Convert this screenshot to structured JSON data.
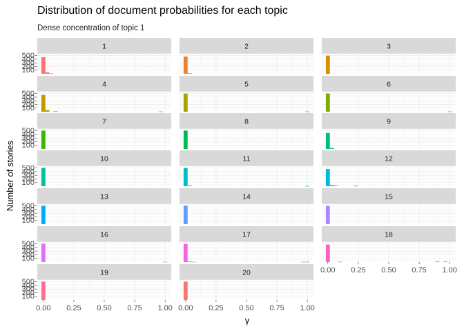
{
  "chart_data": {
    "type": "bar",
    "title": "Distribution of document probabilities for each topic",
    "subtitle": "Dense concentration of topic 1",
    "xlabel": "γ",
    "ylabel": "Number of stories",
    "xlim": [
      -0.05,
      1.05
    ],
    "ylim": [
      0,
      550
    ],
    "x_ticks": [
      0.0,
      0.25,
      0.5,
      0.75,
      1.0
    ],
    "x_tick_labels": [
      "0.00",
      "0.25",
      "0.50",
      "0.75",
      "1.00"
    ],
    "y_ticks": [
      100,
      200,
      300,
      400,
      500
    ],
    "y_tick_labels": [
      "100",
      "200",
      "300",
      "400",
      "500"
    ],
    "bin_width": 0.033,
    "grid": true,
    "legend": "none",
    "facets": [
      {
        "label": "1",
        "color": "#F8766D",
        "bars": [
          {
            "x": 0.0,
            "y": 455
          },
          {
            "x": 0.033,
            "y": 40
          },
          {
            "x": 0.066,
            "y": 8
          }
        ]
      },
      {
        "label": "2",
        "color": "#EA8331",
        "bars": [
          {
            "x": 0.0,
            "y": 475
          },
          {
            "x": 0.033,
            "y": 15
          }
        ]
      },
      {
        "label": "3",
        "color": "#D89000",
        "bars": [
          {
            "x": 0.0,
            "y": 500
          }
        ]
      },
      {
        "label": "4",
        "color": "#C09B00",
        "bars": [
          {
            "x": 0.0,
            "y": 460
          },
          {
            "x": 0.033,
            "y": 45
          },
          {
            "x": 0.1,
            "y": 15
          },
          {
            "x": 0.966,
            "y": 8
          }
        ]
      },
      {
        "label": "5",
        "color": "#A3A500",
        "bars": [
          {
            "x": 0.0,
            "y": 500
          },
          {
            "x": 1.0,
            "y": 8
          }
        ]
      },
      {
        "label": "6",
        "color": "#7CAE00",
        "bars": [
          {
            "x": 0.0,
            "y": 500
          },
          {
            "x": 1.0,
            "y": 8
          }
        ]
      },
      {
        "label": "7",
        "color": "#39B600",
        "bars": [
          {
            "x": 0.0,
            "y": 505
          }
        ]
      },
      {
        "label": "8",
        "color": "#00BB4E",
        "bars": [
          {
            "x": 0.0,
            "y": 505
          }
        ]
      },
      {
        "label": "9",
        "color": "#00BF7D",
        "bars": [
          {
            "x": 0.0,
            "y": 440
          },
          {
            "x": 0.033,
            "y": 25
          }
        ]
      },
      {
        "label": "10",
        "color": "#00C1A3",
        "bars": [
          {
            "x": 0.0,
            "y": 505
          }
        ]
      },
      {
        "label": "11",
        "color": "#00BFC4",
        "bars": [
          {
            "x": 0.0,
            "y": 500
          },
          {
            "x": 0.033,
            "y": 20
          },
          {
            "x": 1.0,
            "y": 8
          }
        ]
      },
      {
        "label": "12",
        "color": "#00B9E3",
        "bars": [
          {
            "x": 0.0,
            "y": 470
          },
          {
            "x": 0.033,
            "y": 30
          },
          {
            "x": 0.066,
            "y": 15
          },
          {
            "x": 0.233,
            "y": 12
          }
        ]
      },
      {
        "label": "13",
        "color": "#00ADFA",
        "bars": [
          {
            "x": 0.0,
            "y": 505
          }
        ]
      },
      {
        "label": "14",
        "color": "#619CFF",
        "bars": [
          {
            "x": 0.0,
            "y": 505
          }
        ]
      },
      {
        "label": "15",
        "color": "#AE87FF",
        "bars": [
          {
            "x": 0.0,
            "y": 500
          }
        ]
      },
      {
        "label": "16",
        "color": "#DB72FB",
        "bars": [
          {
            "x": 0.0,
            "y": 505
          },
          {
            "x": 1.0,
            "y": 8
          }
        ]
      },
      {
        "label": "17",
        "color": "#F564E3",
        "bars": [
          {
            "x": 0.0,
            "y": 500
          },
          {
            "x": 0.033,
            "y": 15
          },
          {
            "x": 0.066,
            "y": 8
          },
          {
            "x": 0.966,
            "y": 8
          },
          {
            "x": 1.0,
            "y": 8
          }
        ]
      },
      {
        "label": "18",
        "color": "#FF61C3",
        "bars": [
          {
            "x": 0.0,
            "y": 480
          },
          {
            "x": 0.1,
            "y": 10
          },
          {
            "x": 0.9,
            "y": 15
          },
          {
            "x": 0.966,
            "y": 15
          }
        ]
      },
      {
        "label": "19",
        "color": "#FF6C91",
        "bars": [
          {
            "x": 0.0,
            "y": 505
          }
        ]
      },
      {
        "label": "20",
        "color": "#F8766D",
        "bars": [
          {
            "x": 0.0,
            "y": 505
          }
        ]
      }
    ]
  }
}
